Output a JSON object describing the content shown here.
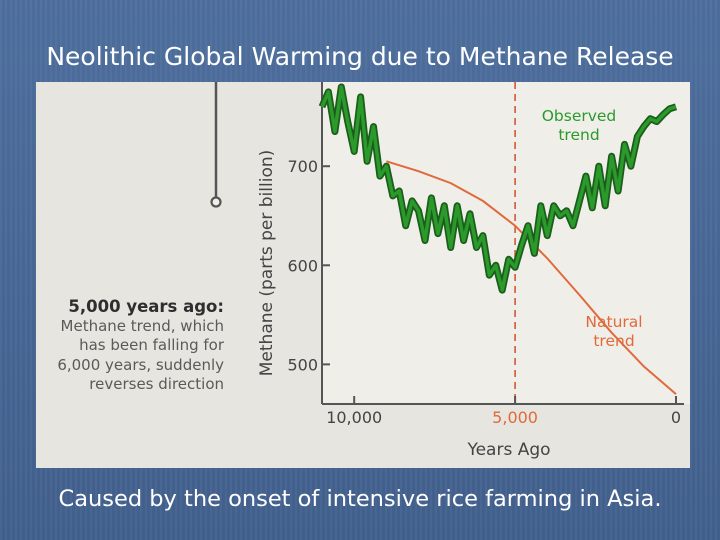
{
  "slide": {
    "title": "Neolithic Global Warming due to Methane Release",
    "subtitle": "Caused by the onset of intensive rice farming in Asia."
  },
  "callout": {
    "heading": "5,000 years ago:",
    "lines": [
      "Methane trend, which",
      "has been falling for",
      "6,000 years, suddenly",
      "reverses direction"
    ]
  },
  "colors": {
    "observed": "#2a9a2a",
    "observed_edge": "#1c5c1c",
    "natural": "#e06a3a",
    "marker_line": "#d15a3a"
  },
  "chart_data": {
    "type": "line",
    "title": "",
    "xlabel": "Years Ago",
    "ylabel": "Methane (parts per billion)",
    "x_axis": {
      "range": [
        11000,
        0
      ],
      "reversed": true,
      "ticks": [
        "10,000",
        "5,000",
        "0"
      ],
      "tick_values": [
        10000,
        5000,
        0
      ]
    },
    "y_axis": {
      "range": [
        460,
        785
      ],
      "ticks": [
        "700",
        "600",
        "500"
      ],
      "tick_values": [
        700,
        600,
        500
      ]
    },
    "marker": {
      "x": 5000,
      "style": "dashed"
    },
    "series": [
      {
        "name": "Observed trend",
        "x": [
          11000,
          10800,
          10600,
          10400,
          10200,
          10000,
          9800,
          9600,
          9400,
          9200,
          9000,
          8800,
          8600,
          8400,
          8200,
          8000,
          7800,
          7600,
          7400,
          7200,
          7000,
          6800,
          6600,
          6400,
          6200,
          6000,
          5800,
          5600,
          5400,
          5200,
          5000,
          4800,
          4600,
          4400,
          4200,
          4000,
          3800,
          3600,
          3400,
          3200,
          3000,
          2800,
          2600,
          2400,
          2200,
          2000,
          1800,
          1600,
          1400,
          1200,
          1000,
          800,
          600,
          400,
          200,
          0
        ],
        "values": [
          760,
          775,
          735,
          780,
          745,
          715,
          770,
          705,
          740,
          690,
          700,
          670,
          675,
          640,
          665,
          655,
          625,
          668,
          632,
          660,
          618,
          660,
          625,
          652,
          618,
          630,
          590,
          600,
          575,
          606,
          598,
          620,
          640,
          612,
          660,
          630,
          660,
          650,
          655,
          640,
          665,
          690,
          658,
          700,
          660,
          710,
          675,
          722,
          700,
          730,
          740,
          748,
          745,
          752,
          758,
          760
        ]
      },
      {
        "name": "Natural trend",
        "x": [
          9000,
          8000,
          7000,
          6000,
          5000,
          4000,
          3000,
          2000,
          1000,
          0
        ],
        "values": [
          705,
          695,
          683,
          665,
          640,
          607,
          570,
          532,
          498,
          470
        ]
      }
    ],
    "legend": "inline labels"
  }
}
